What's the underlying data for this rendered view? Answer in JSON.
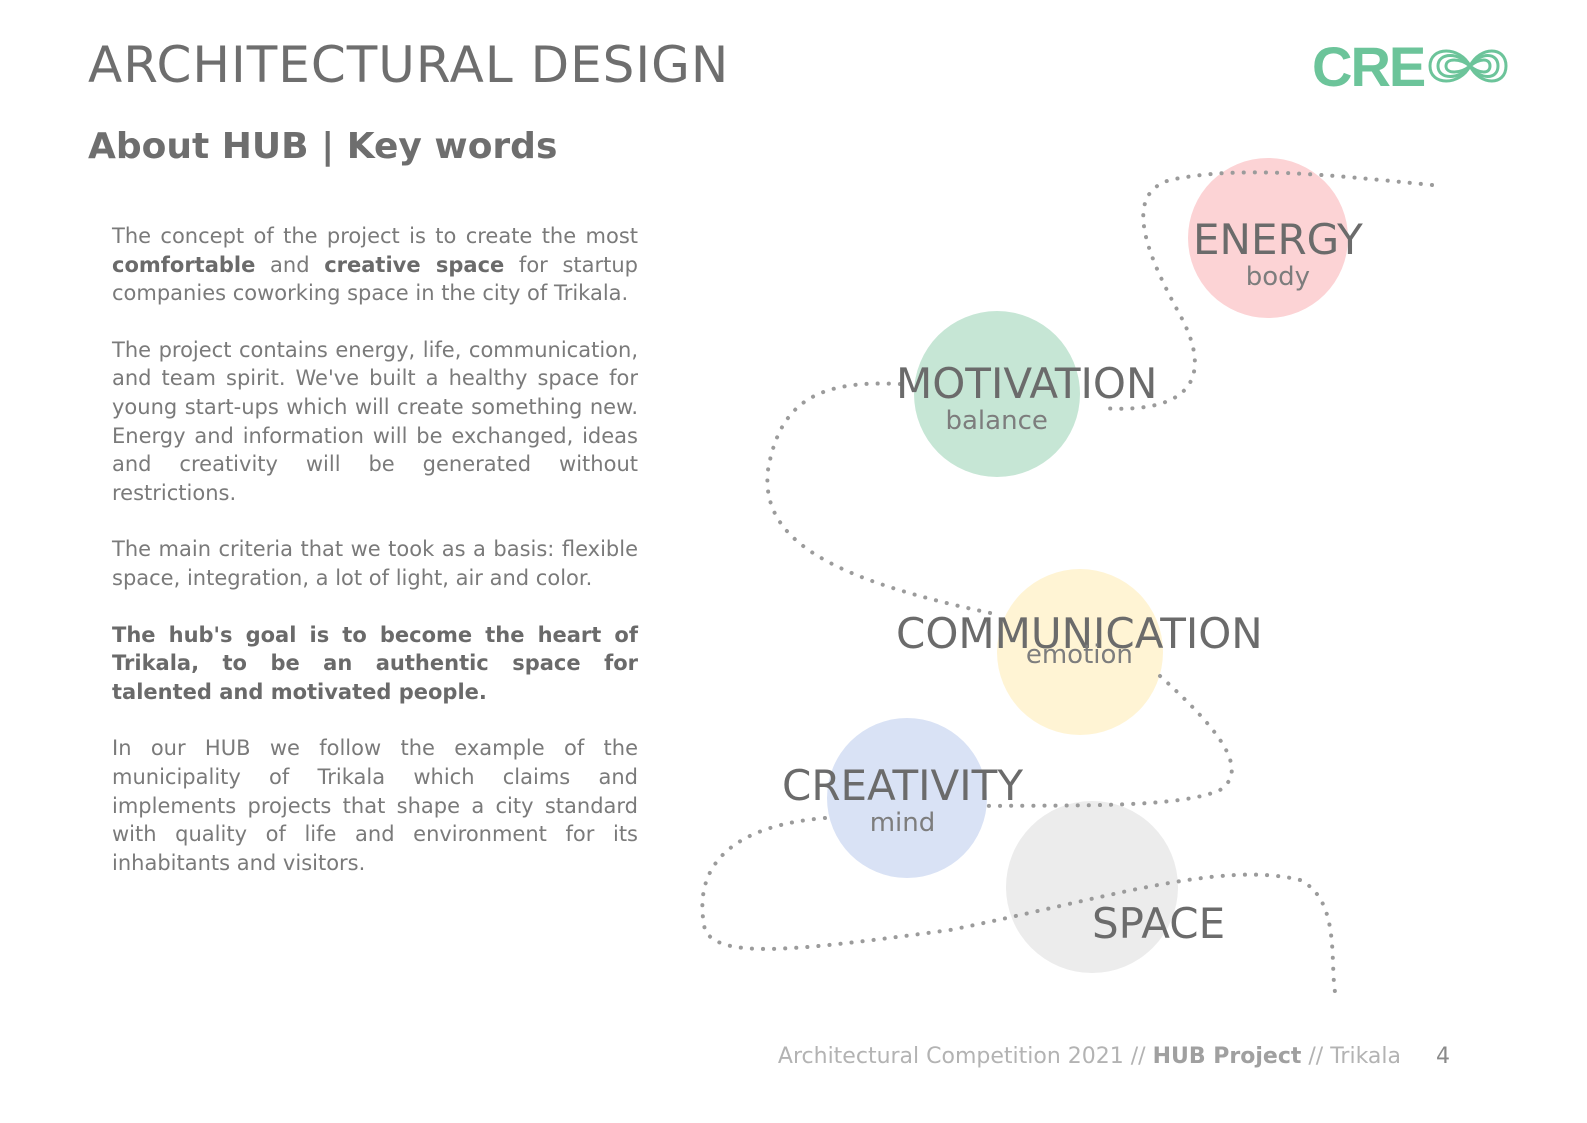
{
  "header": {
    "title": "ARCHITECTURAL DESIGN",
    "subtitle": "About HUB | Key words"
  },
  "logo": {
    "text": "CRE",
    "color": "#6cc49a"
  },
  "body": {
    "p1_before": "The concept of the project is to create the most",
    "p1_bold1": "comfortable",
    "p1_mid": "and",
    "p1_bold2": "creative space",
    "p1_after": "for startup companies coworking space in the city of Trikala.",
    "p2": "The project contains energy, life, communication, and team spirit. We've built a healthy space for young start-ups which will create something new. Energy and information will be exchanged, ideas and creativity will be generated without restrictions.",
    "p3": "The main criteria that we took as a basis: flexible space, integration, a lot of light, air and color.",
    "p4": "The hub's goal is to become the heart of Trikala, to be an authentic space for talented and motivated people.",
    "p5": "In our HUB we follow the example of the municipality of Trikala which claims and implements projects that shape a city standard with quality of life and environment for its inhabitants and visitors."
  },
  "keywords": [
    {
      "word": "ENERGY",
      "sub": "body",
      "color": "#fcd3d5"
    },
    {
      "word": "MOTIVATION",
      "sub": "balance",
      "color": "#c6e6d5"
    },
    {
      "word": "COMMUNICATION",
      "sub": "emotion",
      "color": "#fff4d4"
    },
    {
      "word": "CREATIVITY",
      "sub": "mind",
      "color": "#d9e2f5"
    },
    {
      "word": "SPACE",
      "sub": "",
      "color": "#ececec"
    }
  ],
  "footer": {
    "pre": "Architectural Competition 2021 //",
    "bold": "HUB Project",
    "post": "// Trikala",
    "page": "4"
  }
}
